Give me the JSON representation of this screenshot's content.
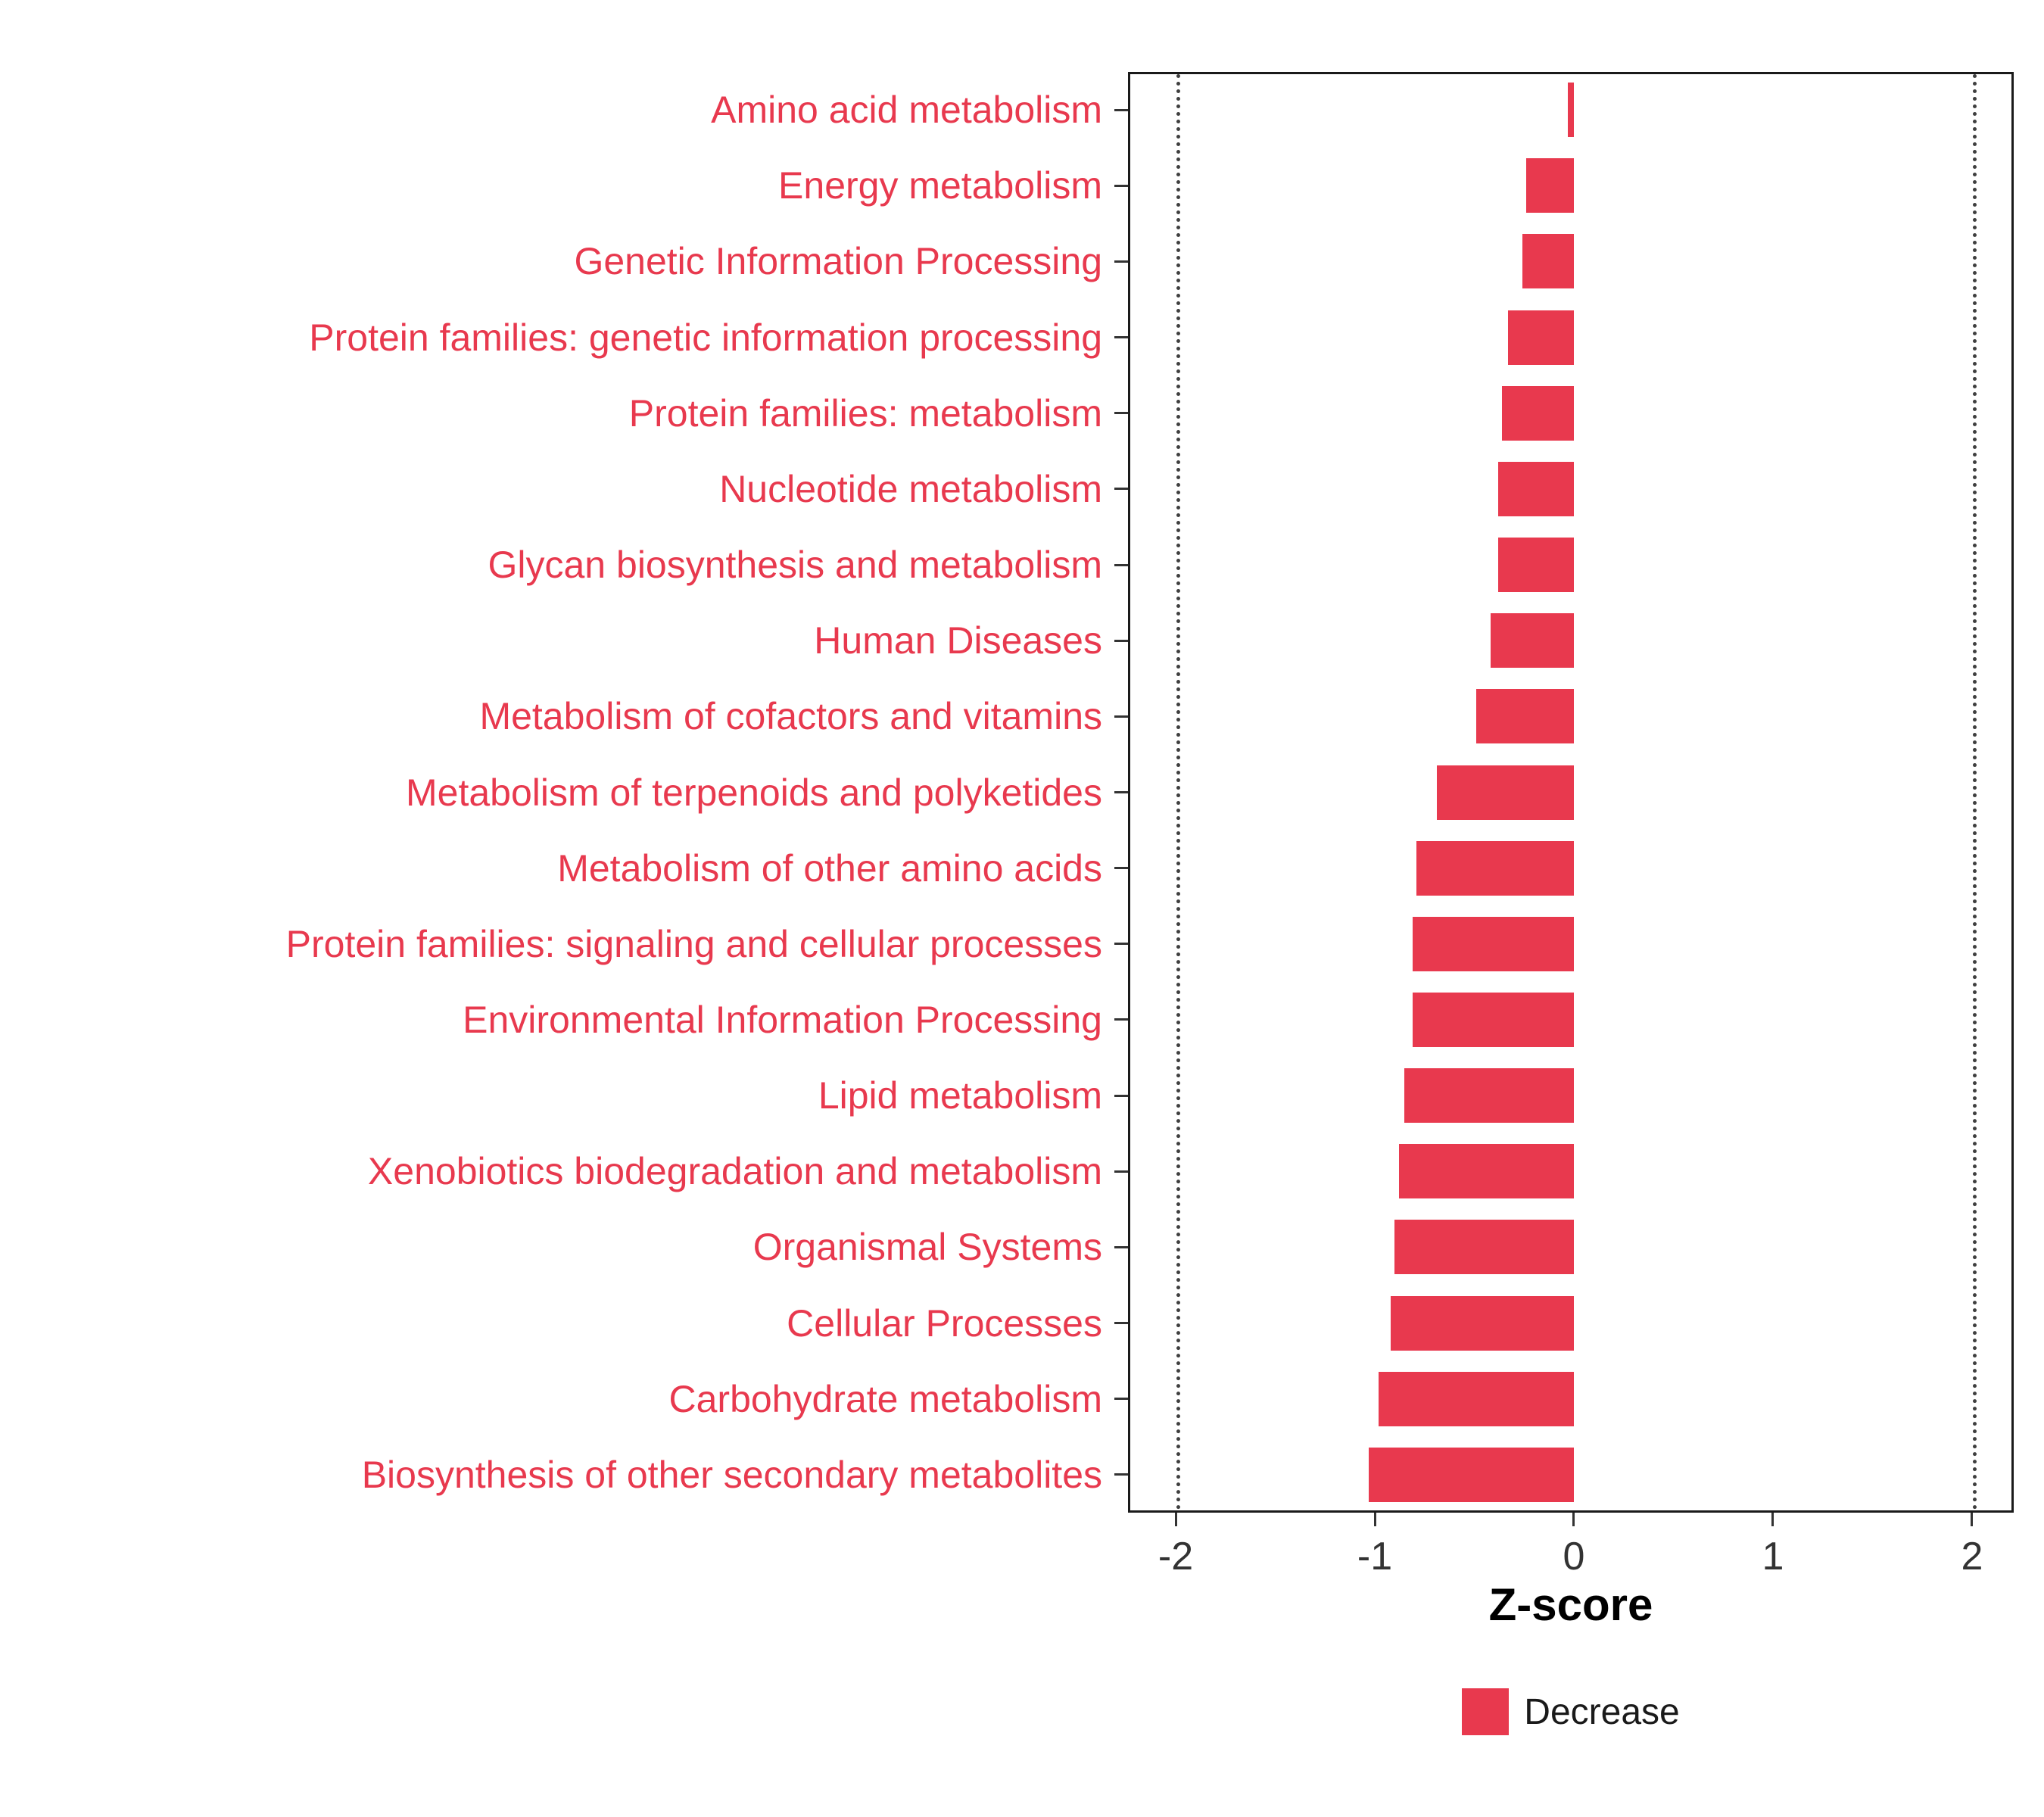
{
  "chart_data": {
    "type": "bar",
    "orientation": "horizontal",
    "title": "",
    "xlabel": "Z-score",
    "ylabel": "",
    "xlim": [
      -2.24,
      2.21
    ],
    "xticks": [
      -2,
      -1,
      0,
      1,
      2
    ],
    "xtick_labels": [
      "-2",
      "-1",
      "0",
      "1",
      "2"
    ],
    "reference_lines": [
      -2,
      2
    ],
    "grid": "off",
    "legend_position": "bottom",
    "categories": [
      "Amino acid metabolism",
      "Energy metabolism",
      "Genetic Information Processing",
      "Protein families: genetic information processing",
      "Protein families: metabolism",
      "Nucleotide metabolism",
      "Glycan biosynthesis and metabolism",
      "Human Diseases",
      "Metabolism of cofactors and vitamins",
      "Metabolism of terpenoids and polyketides",
      "Metabolism of other amino acids",
      "Protein families: signaling and cellular processes",
      "Environmental Information Processing",
      "Lipid metabolism",
      "Xenobiotics biodegradation and metabolism",
      "Organismal Systems",
      "Cellular Processes",
      "Carbohydrate metabolism",
      "Biosynthesis of other secondary metabolites"
    ],
    "series": [
      {
        "name": "Decrease",
        "values": [
          -0.03,
          -0.24,
          -0.26,
          -0.33,
          -0.36,
          -0.38,
          -0.38,
          -0.42,
          -0.49,
          -0.69,
          -0.79,
          -0.81,
          -0.81,
          -0.85,
          -0.88,
          -0.9,
          -0.92,
          -0.98,
          -1.03
        ]
      }
    ],
    "legend": [
      "Decrease"
    ],
    "colors": {
      "bar_fill": "#E8394E",
      "category_label": "#E8394E",
      "axis_text": "#333333",
      "axis_title": "#000000",
      "panel_border": "#1a1a1a",
      "reference_line": "#3f3f3f",
      "background": "#ffffff"
    }
  }
}
